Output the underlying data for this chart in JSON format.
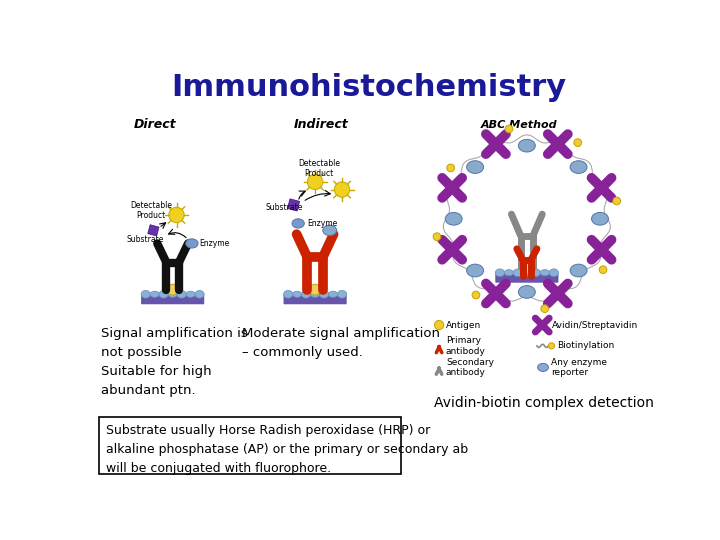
{
  "title": "Immunohistochemistry",
  "title_color": "#1a1a99",
  "title_fontsize": 22,
  "title_fontstyle": "normal",
  "title_fontweight": "bold",
  "background_color": "#ffffff",
  "text_left": "Signal amplification is\nnot possible\nSuitable for high\nabundant ptn.",
  "text_middle": "Moderate signal amplification\n– commonly used.",
  "text_avidin": "Avidin-biotin complex detection",
  "text_substrate": "Substrate usually Horse Radish peroxidase (HRP) or\nalkaline phosphatase (AP) or the primary or secondary ab\nwill be conjugated with fluorophore.",
  "label_direct": "Direct",
  "label_indirect": "Indirect",
  "label_abc": "ABC Method",
  "text_fontsize": 9.5,
  "label_fontsize": 8,
  "avidin_fontsize": 10,
  "substrate_fontsize": 9
}
